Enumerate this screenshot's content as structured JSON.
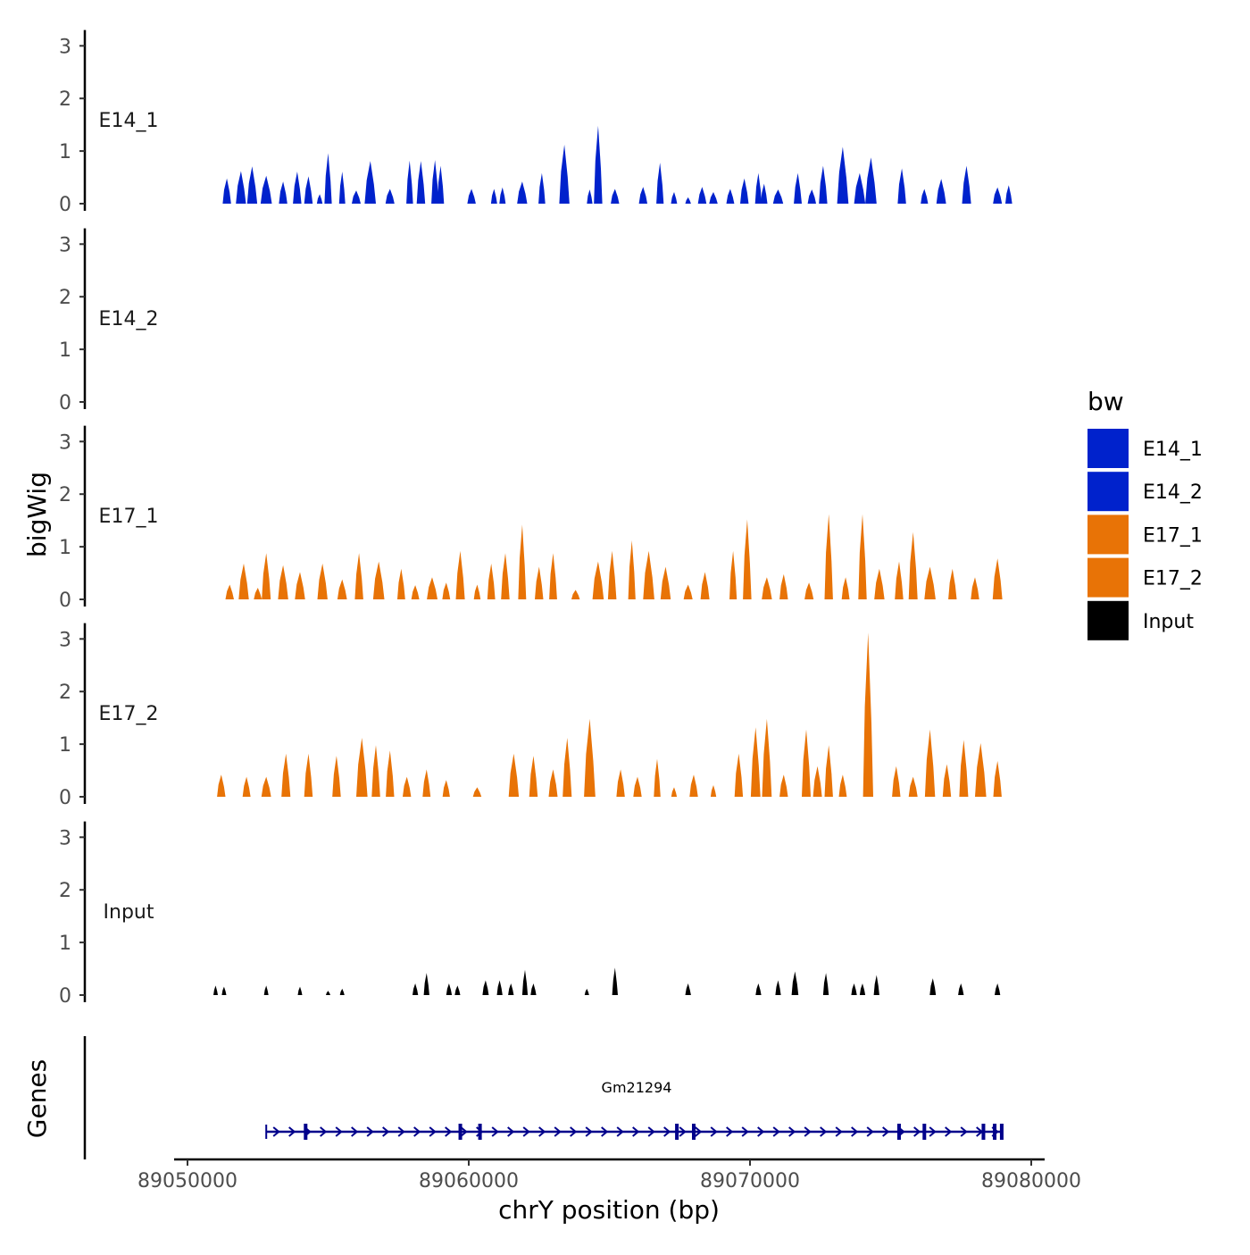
{
  "chart_data": {
    "type": "area",
    "title": "",
    "xlabel": "chrY position (bp)",
    "ylabel": "bigWig",
    "genes_label": "Genes",
    "x_domain": [
      89050000,
      89080000
    ],
    "x_ticks": [
      89050000,
      89060000,
      89070000,
      89080000
    ],
    "x_tick_labels": [
      "89050000",
      "89060000",
      "89070000",
      "89080000"
    ],
    "y_ticks": [
      0,
      1,
      2,
      3
    ],
    "y_tick_labels": [
      "0",
      "1",
      "2",
      "3"
    ],
    "ylim": [
      0,
      3.3
    ],
    "legend": {
      "title": "bw",
      "placement": "right",
      "entries": [
        {
          "label": "E14_1",
          "color": "#0022CC"
        },
        {
          "label": "E14_2",
          "color": "#0022CC"
        },
        {
          "label": "E17_1",
          "color": "#E87306"
        },
        {
          "label": "E17_2",
          "color": "#E87306"
        },
        {
          "label": "Input",
          "color": "#000000"
        }
      ]
    },
    "series": [
      {
        "name": "E14_1",
        "color": "#0022CC",
        "peaks": [
          [
            89051400,
            150,
            0.48
          ],
          [
            89051900,
            180,
            0.62
          ],
          [
            89052300,
            180,
            0.71
          ],
          [
            89052800,
            200,
            0.53
          ],
          [
            89053400,
            150,
            0.42
          ],
          [
            89053900,
            150,
            0.61
          ],
          [
            89054300,
            150,
            0.52
          ],
          [
            89054700,
            100,
            0.18
          ],
          [
            89055000,
            130,
            0.96
          ],
          [
            89055500,
            110,
            0.61
          ],
          [
            89056000,
            160,
            0.25
          ],
          [
            89056500,
            200,
            0.81
          ],
          [
            89057200,
            160,
            0.28
          ],
          [
            89057900,
            120,
            0.82
          ],
          [
            89058300,
            150,
            0.81
          ],
          [
            89058800,
            130,
            0.83
          ],
          [
            89059000,
            120,
            0.72
          ],
          [
            89060100,
            150,
            0.28
          ],
          [
            89060900,
            110,
            0.28
          ],
          [
            89061200,
            110,
            0.31
          ],
          [
            89061900,
            180,
            0.42
          ],
          [
            89062600,
            120,
            0.58
          ],
          [
            89063400,
            180,
            1.12
          ],
          [
            89064300,
            100,
            0.27
          ],
          [
            89064600,
            150,
            1.48
          ],
          [
            89065200,
            150,
            0.28
          ],
          [
            89066200,
            150,
            0.32
          ],
          [
            89066800,
            130,
            0.78
          ],
          [
            89067300,
            110,
            0.22
          ],
          [
            89067800,
            100,
            0.12
          ],
          [
            89068300,
            150,
            0.32
          ],
          [
            89068700,
            150,
            0.22
          ],
          [
            89069300,
            140,
            0.28
          ],
          [
            89069800,
            150,
            0.48
          ],
          [
            89070300,
            120,
            0.58
          ],
          [
            89070500,
            120,
            0.38
          ],
          [
            89071000,
            180,
            0.27
          ],
          [
            89071700,
            140,
            0.58
          ],
          [
            89072200,
            150,
            0.27
          ],
          [
            89072600,
            150,
            0.72
          ],
          [
            89073300,
            200,
            1.08
          ],
          [
            89073900,
            200,
            0.58
          ],
          [
            89074300,
            200,
            0.88
          ],
          [
            89075400,
            150,
            0.67
          ],
          [
            89076200,
            130,
            0.28
          ],
          [
            89076800,
            170,
            0.47
          ],
          [
            89077700,
            160,
            0.72
          ],
          [
            89078800,
            160,
            0.31
          ],
          [
            89079200,
            120,
            0.35
          ]
        ]
      },
      {
        "name": "E14_2",
        "color": "#0022CC",
        "peaks": []
      },
      {
        "name": "E17_1",
        "color": "#E87306",
        "peaks": [
          [
            89051500,
            150,
            0.28
          ],
          [
            89052000,
            180,
            0.68
          ],
          [
            89052500,
            140,
            0.22
          ],
          [
            89052800,
            160,
            0.88
          ],
          [
            89053400,
            180,
            0.65
          ],
          [
            89054000,
            180,
            0.52
          ],
          [
            89054800,
            180,
            0.68
          ],
          [
            89055500,
            170,
            0.38
          ],
          [
            89056100,
            150,
            0.88
          ],
          [
            89056800,
            200,
            0.72
          ],
          [
            89057600,
            140,
            0.58
          ],
          [
            89058100,
            140,
            0.27
          ],
          [
            89058700,
            190,
            0.42
          ],
          [
            89059200,
            140,
            0.32
          ],
          [
            89059700,
            160,
            0.92
          ],
          [
            89060300,
            120,
            0.28
          ],
          [
            89060800,
            140,
            0.68
          ],
          [
            89061300,
            150,
            0.88
          ],
          [
            89061900,
            140,
            1.42
          ],
          [
            89062500,
            150,
            0.62
          ],
          [
            89063000,
            140,
            0.88
          ],
          [
            89063800,
            150,
            0.18
          ],
          [
            89064600,
            200,
            0.72
          ],
          [
            89065100,
            150,
            0.92
          ],
          [
            89065800,
            130,
            1.12
          ],
          [
            89066400,
            200,
            0.92
          ],
          [
            89067000,
            180,
            0.62
          ],
          [
            89067800,
            160,
            0.28
          ],
          [
            89068400,
            160,
            0.52
          ],
          [
            89069400,
            130,
            0.92
          ],
          [
            89069900,
            150,
            1.52
          ],
          [
            89070600,
            180,
            0.42
          ],
          [
            89071200,
            150,
            0.48
          ],
          [
            89072100,
            160,
            0.32
          ],
          [
            89072800,
            150,
            1.62
          ],
          [
            89073400,
            140,
            0.42
          ],
          [
            89074000,
            150,
            1.62
          ],
          [
            89074600,
            180,
            0.58
          ],
          [
            89075300,
            150,
            0.72
          ],
          [
            89075800,
            160,
            1.28
          ],
          [
            89076400,
            200,
            0.62
          ],
          [
            89077200,
            150,
            0.58
          ],
          [
            89078000,
            150,
            0.42
          ],
          [
            89078800,
            170,
            0.78
          ]
        ]
      },
      {
        "name": "E17_2",
        "color": "#E87306",
        "peaks": [
          [
            89051200,
            150,
            0.42
          ],
          [
            89052100,
            140,
            0.38
          ],
          [
            89052800,
            170,
            0.38
          ],
          [
            89053500,
            160,
            0.82
          ],
          [
            89054300,
            150,
            0.82
          ],
          [
            89055300,
            150,
            0.78
          ],
          [
            89056200,
            200,
            1.12
          ],
          [
            89056700,
            150,
            0.98
          ],
          [
            89057200,
            150,
            0.88
          ],
          [
            89057800,
            150,
            0.38
          ],
          [
            89058500,
            140,
            0.52
          ],
          [
            89059200,
            130,
            0.32
          ],
          [
            89060300,
            150,
            0.18
          ],
          [
            89061600,
            180,
            0.82
          ],
          [
            89062300,
            150,
            0.78
          ],
          [
            89063000,
            160,
            0.52
          ],
          [
            89063500,
            160,
            1.12
          ],
          [
            89064300,
            200,
            1.48
          ],
          [
            89065400,
            150,
            0.52
          ],
          [
            89066000,
            150,
            0.38
          ],
          [
            89066700,
            120,
            0.72
          ],
          [
            89067300,
            100,
            0.18
          ],
          [
            89068000,
            150,
            0.42
          ],
          [
            89068700,
            100,
            0.22
          ],
          [
            89069600,
            150,
            0.82
          ],
          [
            89070200,
            170,
            1.32
          ],
          [
            89070600,
            170,
            1.48
          ],
          [
            89071200,
            150,
            0.42
          ],
          [
            89072000,
            160,
            1.28
          ],
          [
            89072400,
            160,
            0.58
          ],
          [
            89072800,
            150,
            0.98
          ],
          [
            89073300,
            140,
            0.42
          ],
          [
            89074200,
            180,
            3.12
          ],
          [
            89075200,
            150,
            0.58
          ],
          [
            89075800,
            160,
            0.38
          ],
          [
            89076400,
            180,
            1.28
          ],
          [
            89077000,
            150,
            0.62
          ],
          [
            89077600,
            160,
            1.08
          ],
          [
            89078200,
            200,
            1.02
          ],
          [
            89078800,
            150,
            0.68
          ]
        ]
      },
      {
        "name": "Input",
        "color": "#000000",
        "peaks": [
          [
            89051000,
            80,
            0.18
          ],
          [
            89051300,
            80,
            0.16
          ],
          [
            89052800,
            80,
            0.18
          ],
          [
            89054000,
            80,
            0.16
          ],
          [
            89055000,
            80,
            0.08
          ],
          [
            89055500,
            80,
            0.12
          ],
          [
            89058100,
            100,
            0.22
          ],
          [
            89058500,
            100,
            0.42
          ],
          [
            89059300,
            100,
            0.22
          ],
          [
            89059600,
            100,
            0.18
          ],
          [
            89060600,
            110,
            0.28
          ],
          [
            89061100,
            100,
            0.28
          ],
          [
            89061500,
            100,
            0.22
          ],
          [
            89062000,
            100,
            0.48
          ],
          [
            89062300,
            100,
            0.22
          ],
          [
            89064200,
            80,
            0.12
          ],
          [
            89065200,
            100,
            0.52
          ],
          [
            89067800,
            100,
            0.22
          ],
          [
            89070300,
            100,
            0.22
          ],
          [
            89071000,
            100,
            0.28
          ],
          [
            89071600,
            120,
            0.45
          ],
          [
            89072700,
            100,
            0.42
          ],
          [
            89073700,
            100,
            0.22
          ],
          [
            89074000,
            100,
            0.22
          ],
          [
            89074500,
            100,
            0.38
          ],
          [
            89076500,
            110,
            0.32
          ],
          [
            89077500,
            100,
            0.22
          ],
          [
            89078800,
            100,
            0.22
          ]
        ]
      }
    ],
    "gene": {
      "name": "Gm21294",
      "start": 89052800,
      "end": 89079000,
      "strand": "+",
      "exons": [
        89054200,
        89059700,
        89060400,
        89067400,
        89068000,
        89075300,
        89076200,
        89078300,
        89078700,
        89078950
      ]
    }
  }
}
